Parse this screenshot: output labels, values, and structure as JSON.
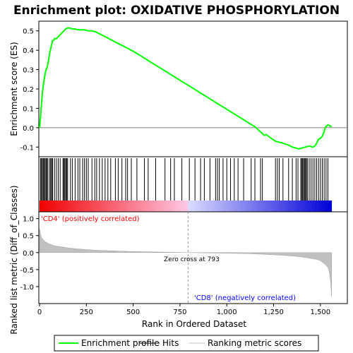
{
  "chart_data": {
    "type": "line",
    "title": "Enrichment plot: OXIDATIVE PHOSPHORYLATION",
    "top_panel": {
      "ylabel": "Enrichment score (ES)",
      "ylim": [
        -0.15,
        0.55
      ],
      "yticks": [
        -0.1,
        0.0,
        0.1,
        0.2,
        0.3,
        0.4,
        0.5
      ],
      "ytick_labels": [
        "-0.1",
        "0.0",
        "0.1",
        "0.2",
        "0.3",
        "0.4",
        "0.5"
      ],
      "series": [
        {
          "name": "Enrichment profile",
          "color": "#00ff00",
          "x": [
            0,
            5,
            10,
            15,
            20,
            25,
            30,
            35,
            40,
            45,
            50,
            55,
            60,
            65,
            70,
            75,
            80,
            90,
            100,
            110,
            120,
            130,
            140,
            150,
            160,
            175,
            190,
            205,
            220,
            240,
            260,
            280,
            300,
            320,
            350,
            380,
            410,
            440,
            470,
            500,
            550,
            600,
            650,
            700,
            750,
            800,
            850,
            900,
            950,
            1000,
            1050,
            1100,
            1150,
            1190,
            1200,
            1210,
            1230,
            1260,
            1280,
            1300,
            1330,
            1350,
            1370,
            1385,
            1400,
            1420,
            1440,
            1460,
            1470,
            1480,
            1490,
            1500,
            1510,
            1520,
            1525,
            1530,
            1540,
            1550,
            1560
          ],
          "y": [
            0.0,
            0.05,
            0.12,
            0.18,
            0.22,
            0.25,
            0.28,
            0.3,
            0.31,
            0.33,
            0.36,
            0.39,
            0.41,
            0.43,
            0.45,
            0.45,
            0.46,
            0.46,
            0.47,
            0.48,
            0.49,
            0.5,
            0.51,
            0.515,
            0.515,
            0.51,
            0.51,
            0.505,
            0.505,
            0.505,
            0.5,
            0.5,
            0.495,
            0.485,
            0.47,
            0.455,
            0.44,
            0.425,
            0.41,
            0.395,
            0.365,
            0.335,
            0.305,
            0.275,
            0.245,
            0.215,
            0.185,
            0.155,
            0.125,
            0.095,
            0.065,
            0.035,
            0.005,
            -0.03,
            -0.04,
            -0.035,
            -0.05,
            -0.07,
            -0.075,
            -0.08,
            -0.09,
            -0.1,
            -0.105,
            -0.11,
            -0.105,
            -0.1,
            -0.095,
            -0.1,
            -0.095,
            -0.08,
            -0.06,
            -0.055,
            -0.045,
            -0.02,
            0.0,
            0.005,
            0.015,
            0.01,
            0.005
          ]
        }
      ]
    },
    "hits": {
      "name": "Hits",
      "color": "#000000",
      "x": [
        5,
        10,
        15,
        20,
        25,
        30,
        35,
        40,
        45,
        55,
        60,
        65,
        70,
        80,
        90,
        100,
        110,
        125,
        130,
        135,
        140,
        145,
        150,
        165,
        175,
        190,
        205,
        215,
        230,
        240,
        250,
        260,
        280,
        295,
        305,
        320,
        335,
        350,
        365,
        380,
        405,
        420,
        440,
        460,
        470,
        490,
        520,
        560,
        580,
        620,
        670,
        700,
        720,
        760,
        800,
        830,
        860,
        880,
        910,
        940,
        950,
        960,
        980,
        1000,
        1020,
        1040,
        1060,
        1090,
        1130,
        1150,
        1180,
        1190,
        1260,
        1270,
        1280,
        1300,
        1330,
        1350,
        1370,
        1380,
        1395,
        1400,
        1405,
        1410,
        1415,
        1420,
        1425,
        1430,
        1440,
        1450,
        1460,
        1470,
        1480,
        1490,
        1500,
        1510,
        1520,
        1530,
        1540
      ]
    },
    "ranked_metric": {
      "name": "Ranking metric scores",
      "color": "#c0c0c0",
      "ylabel": "Ranked list metric (Diff_of_Classes)",
      "ylim": [
        -1.5,
        1.2
      ],
      "yticks": [
        -1.0,
        -0.5,
        0.0,
        0.5,
        1.0
      ],
      "ytick_labels": [
        "-1.0",
        "-0.5",
        "0.0",
        "0.5",
        "1.0"
      ],
      "x": [
        0,
        5,
        10,
        20,
        30,
        50,
        75,
        100,
        150,
        200,
        300,
        400,
        500,
        600,
        700,
        793,
        900,
        1000,
        1100,
        1200,
        1300,
        1350,
        1400,
        1450,
        1480,
        1500,
        1520,
        1535,
        1545,
        1550,
        1555,
        1560
      ],
      "y": [
        0.7,
        0.55,
        0.45,
        0.38,
        0.32,
        0.26,
        0.21,
        0.18,
        0.14,
        0.11,
        0.07,
        0.05,
        0.03,
        0.02,
        0.01,
        0.0,
        -0.01,
        -0.02,
        -0.03,
        -0.05,
        -0.08,
        -0.1,
        -0.13,
        -0.17,
        -0.2,
        -0.24,
        -0.32,
        -0.4,
        -0.5,
        -0.65,
        -0.9,
        -1.3
      ]
    },
    "xlabel": "Rank in Ordered Dataset",
    "xlim": [
      0,
      1640
    ],
    "xticks": [
      0,
      250,
      500,
      750,
      1000,
      1250,
      1500
    ],
    "xtick_labels": [
      "0",
      "250",
      "500",
      "750",
      "1,000",
      "1,250",
      "1,500"
    ],
    "zero_cross": 793,
    "zero_cross_label": "Zero cross at 793",
    "positive_label": "'CD4' (positively correlated)",
    "negative_label": "'CD8' (negatively correlated)",
    "positive_color": "#ff0000",
    "negative_color": "#0000ff",
    "legend": [
      {
        "name": "Enrichment profile",
        "color": "#00ff00"
      },
      {
        "name": "Hits",
        "color": "#000000"
      },
      {
        "name": "Ranking metric scores",
        "color": "#c0c0c0"
      }
    ],
    "legend_position": "bottom",
    "grid": false
  }
}
